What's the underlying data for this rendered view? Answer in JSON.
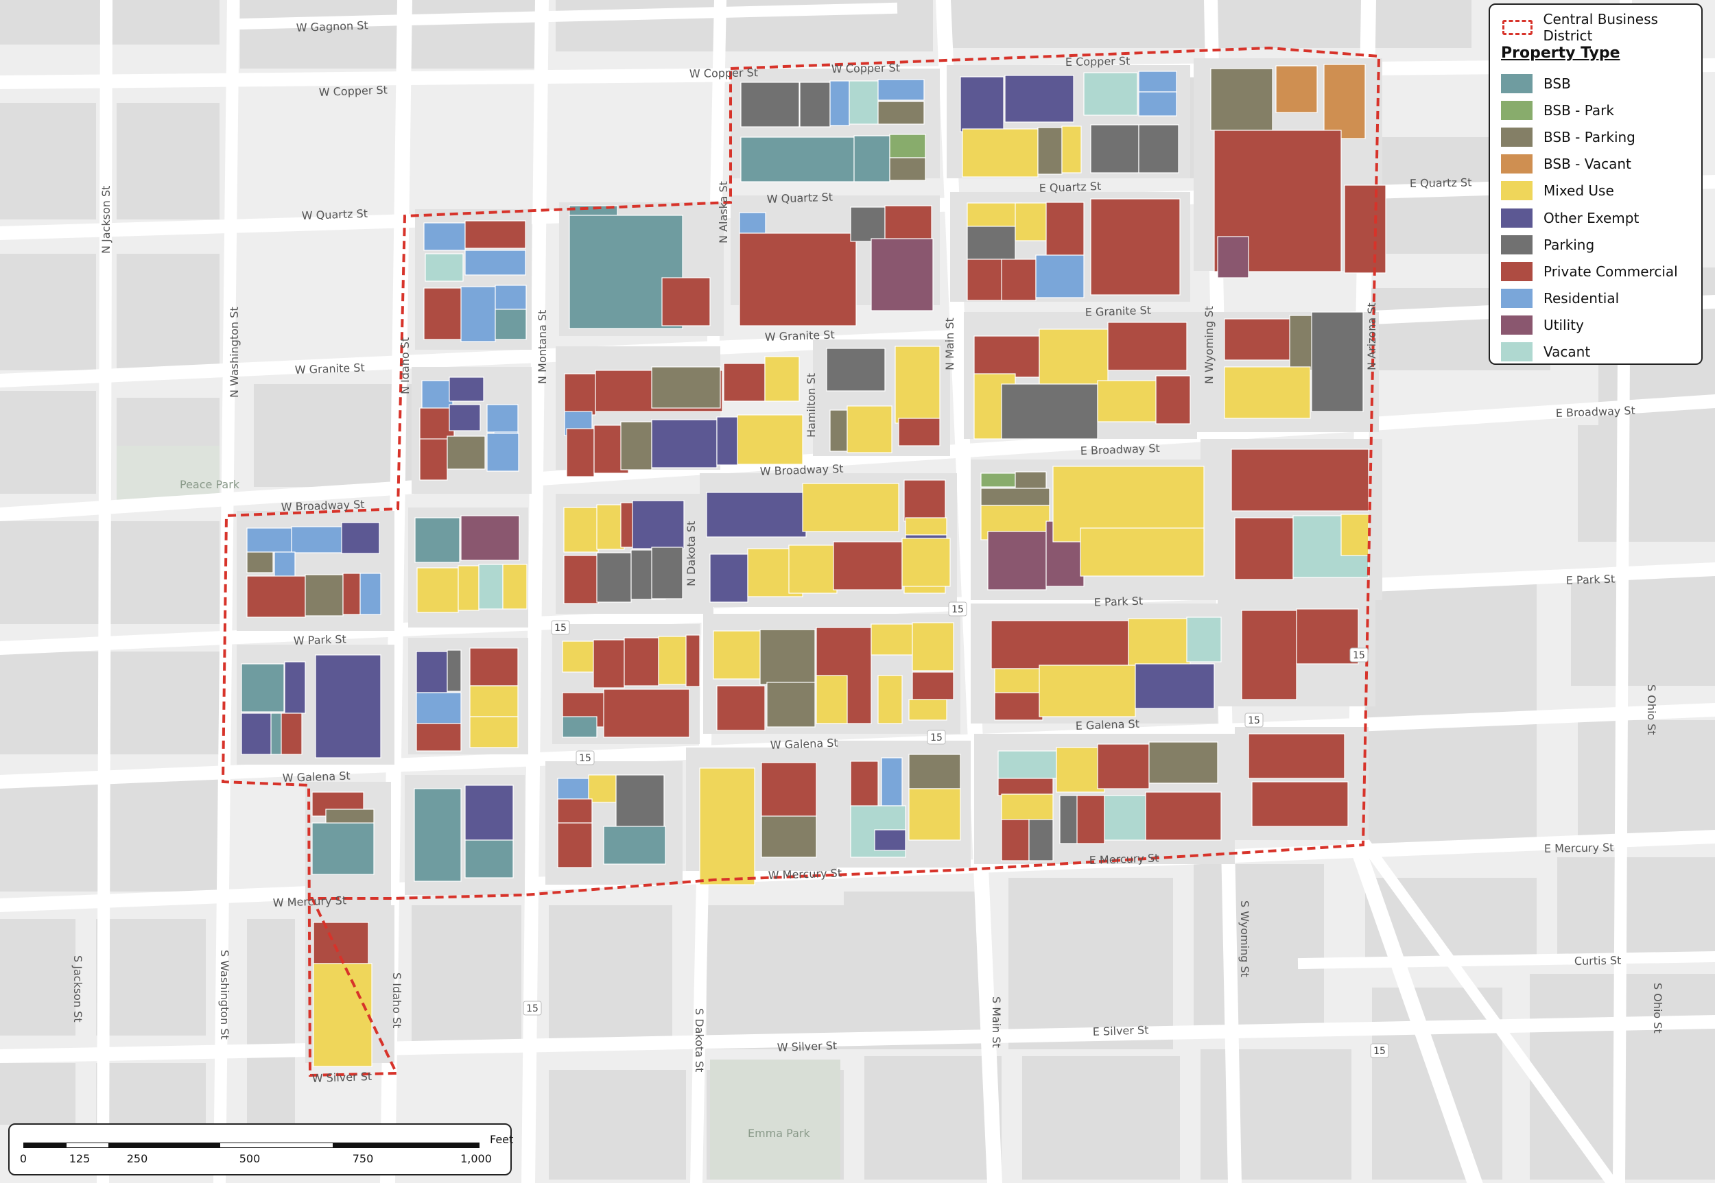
{
  "legend": {
    "boundary_label": "Central Business District",
    "title": "Property Type",
    "items": [
      {
        "label": "BSB",
        "color": "#6f9ca0"
      },
      {
        "label": "BSB - Park",
        "color": "#88ac6c"
      },
      {
        "label": "BSB - Parking",
        "color": "#847f66"
      },
      {
        "label": "BSB - Vacant",
        "color": "#cf8f51"
      },
      {
        "label": "Mixed Use",
        "color": "#efd65a"
      },
      {
        "label": "Other Exempt",
        "color": "#5c5893"
      },
      {
        "label": "Parking",
        "color": "#717171"
      },
      {
        "label": "Private Commercial",
        "color": "#ae4c42"
      },
      {
        "label": "Residential",
        "color": "#7aa6d9"
      },
      {
        "label": "Utility",
        "color": "#8a576f"
      },
      {
        "label": "Vacant",
        "color": "#afd8d0"
      }
    ],
    "boundary_color": "#d7332a"
  },
  "scale_bar": {
    "ticks": [
      "0",
      "125",
      "250",
      "500",
      "750",
      "1,000"
    ],
    "unit": "Feet"
  },
  "street_labels": {
    "w_gagnon": "W Gagnon St",
    "w_copper_left": "W Copper St",
    "w_copper_mid1": "W Copper St",
    "w_copper_mid2": "W Copper St",
    "e_copper": "E Copper St",
    "w_quartz_left": "W Quartz St",
    "w_quartz_mid": "W Quartz St",
    "e_quartz_mid": "E Quartz St",
    "e_quartz_right": "E Quartz St",
    "w_granite_left": "W Granite St",
    "w_granite_mid": "W Granite St",
    "e_granite": "E Granite St",
    "e_broadway_right": "E Broadway St",
    "e_broadway_mid": "E Broadway St",
    "w_broadway_mid": "W Broadway St",
    "w_broadway_left": "W Broadway St",
    "w_park": "W Park St",
    "e_park_mid": "E Park St",
    "e_park_right": "E Park St",
    "e_galena": "E Galena St",
    "w_galena_mid": "W Galena St",
    "w_galena_left": "W Galena St",
    "w_mercury_left": "W Mercury St",
    "w_mercury_mid": "W Mercury St",
    "e_mercury_mid": "E Mercury St",
    "e_mercury_right": "E Mercury St",
    "curtis": "Curtis St",
    "w_silver_left": "W Silver St",
    "w_silver_mid": "W Silver St",
    "e_silver": "E Silver St",
    "n_jackson": "N Jackson St",
    "n_washington": "N Washington St",
    "n_idaho": "N Idaho St",
    "n_montana": "N Montana St",
    "n_alaska": "N Alaska St",
    "hamilton": "Hamilton St",
    "n_dakota": "N Dakota St",
    "n_main": "N Main St",
    "n_wyoming": "N Wyoming St",
    "n_arizona": "N Arizona St",
    "s_ohio_upper": "S Ohio St",
    "s_ohio_lower": "S Ohio St",
    "s_jackson": "S Jackson St",
    "s_washington": "S Washington St",
    "s_idaho": "S Idaho St",
    "s_dakota": "S Dakota St",
    "s_main": "S Main St",
    "s_wyoming": "S Wyoming St",
    "peace_park": "Peace Park",
    "emma_park": "Emma Park"
  },
  "route_shields": [
    "15",
    "15",
    "15",
    "15",
    "15",
    "15",
    "15",
    "15"
  ]
}
